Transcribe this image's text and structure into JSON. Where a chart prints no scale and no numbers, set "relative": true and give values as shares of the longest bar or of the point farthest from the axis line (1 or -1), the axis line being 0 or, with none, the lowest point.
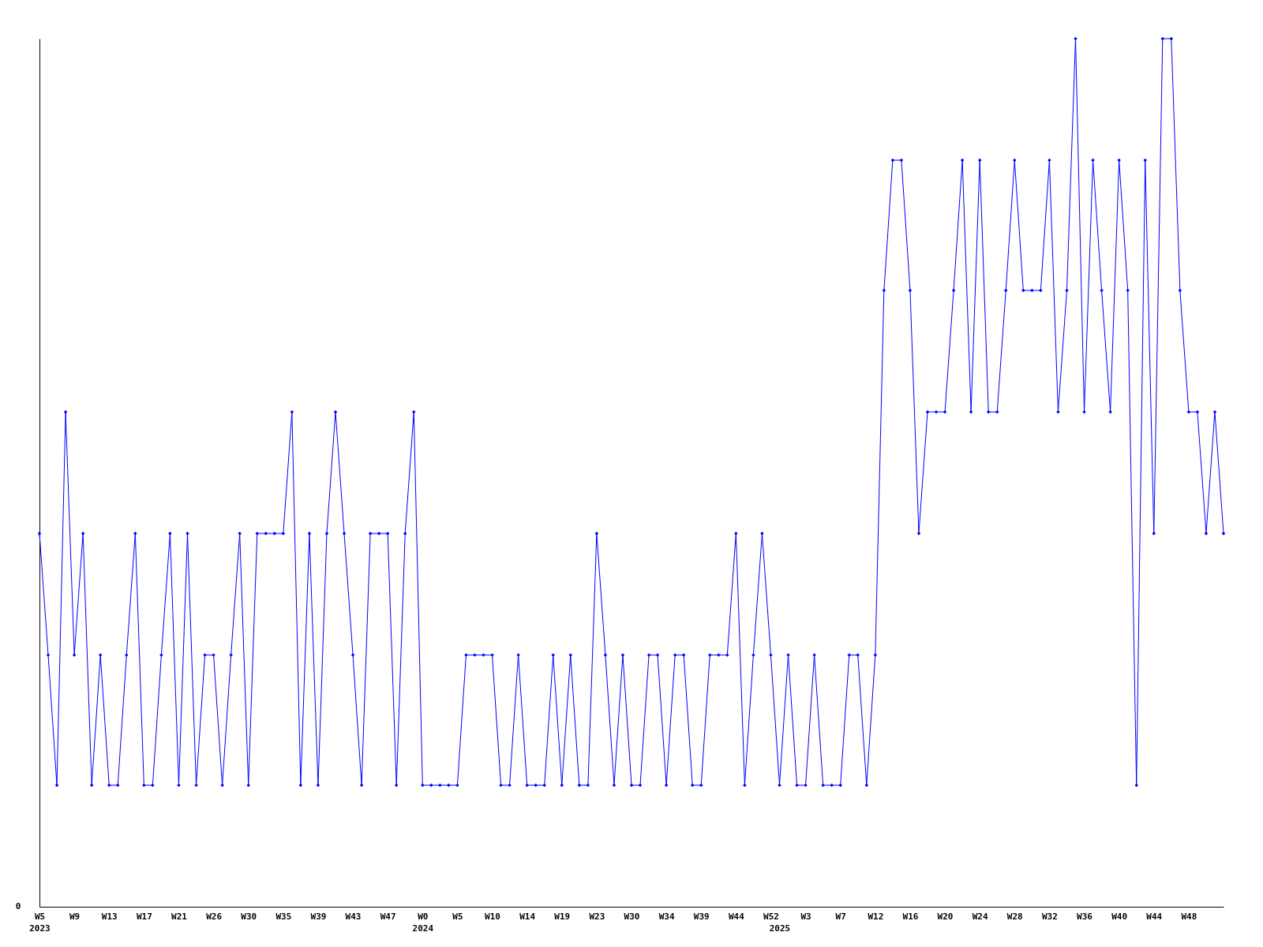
{
  "chart_data": {
    "type": "line",
    "relative": true,
    "marker": "diamond",
    "line_style": "solid",
    "annotations": [
      "0"
    ],
    "categories": [
      "W5\n2023",
      null,
      null,
      null,
      "W9",
      null,
      null,
      null,
      "W13",
      null,
      null,
      null,
      "W17",
      null,
      null,
      null,
      "W21",
      null,
      null,
      null,
      "W26",
      null,
      null,
      null,
      "W30",
      null,
      null,
      null,
      "W35",
      null,
      null,
      null,
      "W39",
      null,
      null,
      null,
      "W43",
      null,
      null,
      null,
      "W47",
      null,
      null,
      null,
      "W0\n2024",
      null,
      null,
      null,
      "W5",
      null,
      null,
      null,
      "W10",
      null,
      null,
      null,
      "W14",
      null,
      null,
      null,
      "W19",
      null,
      null,
      null,
      "W23",
      null,
      null,
      null,
      "W30",
      null,
      null,
      null,
      "W34",
      null,
      null,
      null,
      "W39",
      null,
      null,
      null,
      "W44",
      null,
      null,
      null,
      "W52",
      "\n2025",
      null,
      null,
      "W3",
      null,
      null,
      null,
      "W7",
      null,
      null,
      null,
      "W12",
      null,
      null,
      null,
      "W16",
      null,
      null,
      null,
      "W20",
      null,
      null,
      null,
      "W24",
      null,
      null,
      null,
      "W28",
      null,
      null,
      null,
      "W32",
      null,
      null,
      null,
      "W36",
      null,
      null,
      null,
      "W40",
      null,
      null,
      null,
      "W44",
      null,
      null,
      null,
      "W48",
      null,
      null,
      null,
      null
    ],
    "series": [
      {
        "color": "#0000ff",
        "values": [
          0.43,
          0.29,
          0.14,
          0.57,
          0.29,
          0.43,
          0.14,
          0.29,
          0.14,
          0.14,
          0.29,
          0.43,
          0.14,
          0.14,
          0.29,
          0.43,
          0.14,
          0.43,
          0.14,
          0.29,
          0.29,
          0.14,
          0.29,
          0.43,
          0.14,
          0.43,
          0.43,
          0.43,
          0.43,
          0.57,
          0.14,
          0.43,
          0.14,
          0.43,
          0.57,
          0.43,
          0.29,
          0.14,
          0.43,
          0.43,
          0.43,
          0.14,
          0.43,
          0.57,
          0.14,
          0.14,
          0.14,
          0.14,
          0.14,
          0.29,
          0.29,
          0.29,
          0.29,
          0.14,
          0.14,
          0.29,
          0.14,
          0.14,
          0.14,
          0.29,
          0.14,
          0.29,
          0.14,
          0.14,
          0.43,
          0.29,
          0.14,
          0.29,
          0.14,
          0.14,
          0.29,
          0.29,
          0.14,
          0.29,
          0.29,
          0.14,
          0.14,
          0.29,
          0.29,
          0.29,
          0.43,
          0.14,
          0.29,
          0.43,
          0.29,
          0.14,
          0.29,
          0.14,
          0.14,
          0.29,
          0.14,
          0.14,
          0.14,
          0.29,
          0.29,
          0.14,
          0.29,
          0.71,
          0.86,
          0.86,
          0.71,
          0.43,
          0.57,
          0.57,
          0.57,
          0.71,
          0.86,
          0.57,
          0.86,
          0.57,
          0.57,
          0.71,
          0.86,
          0.71,
          0.71,
          0.71,
          0.86,
          0.57,
          0.71,
          1,
          0.57,
          0.86,
          0.71,
          0.57,
          0.86,
          0.71,
          0.14,
          0.86,
          0.43,
          1,
          1,
          0.71,
          0.57,
          0.57,
          0.43,
          0.57,
          0.43
        ]
      }
    ]
  }
}
